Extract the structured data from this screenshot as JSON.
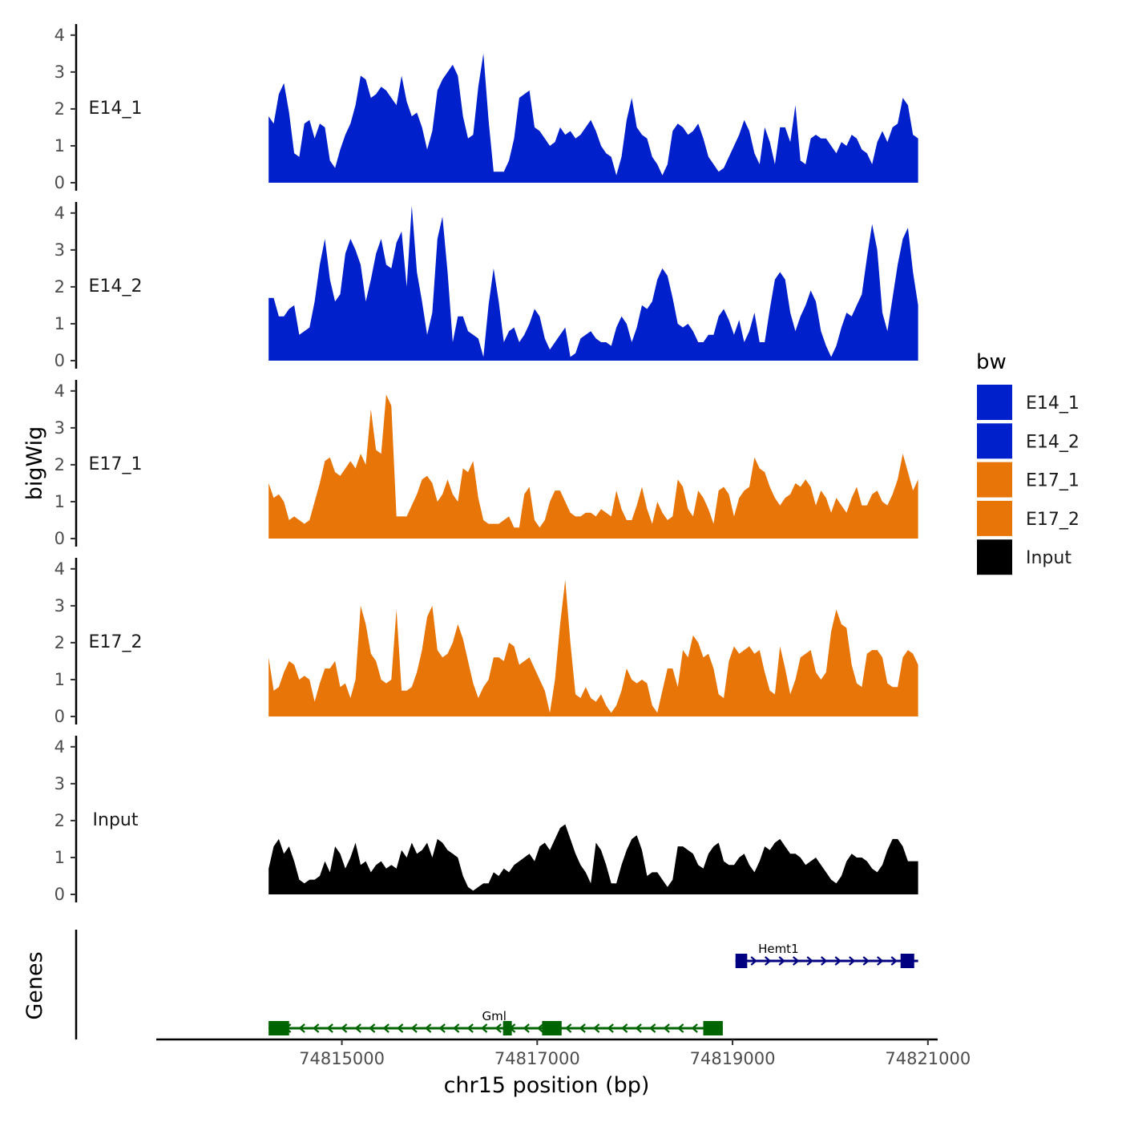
{
  "chart_data": {
    "type": "area",
    "title": "",
    "xlabel": "chr15 position (bp)",
    "ylabel": "bigWig",
    "genes_label": "Genes",
    "xlim": [
      74813100,
      74821100
    ],
    "ylim": [
      0,
      4.3
    ],
    "x_ticks": [
      74815000,
      74817000,
      74819000,
      74821000
    ],
    "x_tick_labels": [
      "74815000",
      "74817000",
      "74819000",
      "74821000"
    ],
    "y_ticks": [
      0,
      1,
      2,
      3,
      4
    ],
    "y_tick_labels": [
      "0",
      "1",
      "2",
      "3",
      "4"
    ],
    "x_start": 74814250,
    "x_end": 74820900,
    "n_points": 128,
    "legend": {
      "title": "bw",
      "entries": [
        {
          "label": "E14_1",
          "color": "#0020CC"
        },
        {
          "label": "E14_2",
          "color": "#0020CC"
        },
        {
          "label": "E17_1",
          "color": "#E87508"
        },
        {
          "label": "E17_2",
          "color": "#E87508"
        },
        {
          "label": "Input",
          "color": "#000000"
        }
      ]
    },
    "series": [
      {
        "name": "E14_1",
        "color": "#0020CC",
        "values": [
          1.8,
          1.6,
          2.4,
          2.7,
          1.9,
          0.8,
          0.7,
          1.6,
          1.7,
          1.2,
          1.6,
          1.5,
          0.6,
          0.4,
          0.9,
          1.3,
          1.6,
          2.1,
          2.9,
          2.8,
          2.3,
          2.4,
          2.6,
          2.5,
          2.3,
          2.1,
          2.9,
          2.2,
          1.8,
          1.9,
          1.5,
          0.9,
          1.4,
          2.5,
          2.8,
          3.0,
          3.2,
          2.9,
          1.8,
          1.2,
          1.3,
          2.6,
          3.5,
          1.7,
          0.3,
          0.3,
          0.3,
          0.6,
          1.2,
          2.3,
          2.4,
          2.5,
          1.5,
          1.4,
          1.2,
          1.0,
          1.1,
          1.5,
          1.3,
          1.4,
          1.2,
          1.3,
          1.5,
          1.7,
          1.4,
          1.0,
          0.8,
          0.7,
          0.2,
          0.7,
          1.7,
          2.3,
          1.5,
          1.3,
          1.2,
          0.7,
          0.5,
          0.2,
          0.5,
          1.4,
          1.6,
          1.5,
          1.3,
          1.4,
          1.6,
          1.2,
          0.7,
          0.5,
          0.3,
          0.4,
          0.7,
          1.0,
          1.3,
          1.7,
          1.4,
          0.8,
          0.5,
          1.5,
          1.1,
          0.5,
          1.5,
          1.5,
          1.1,
          2.1,
          0.6,
          0.5,
          1.2,
          1.3,
          1.2,
          1.2,
          1.0,
          0.8,
          1.1,
          1.0,
          1.3,
          1.2,
          0.9,
          0.8,
          0.5,
          1.1,
          1.4,
          1.1,
          1.5,
          1.6,
          2.3,
          2.1,
          1.3,
          1.2
        ]
      },
      {
        "name": "E14_2",
        "color": "#0020CC",
        "values": [
          1.7,
          1.7,
          1.2,
          1.2,
          1.4,
          1.5,
          0.7,
          0.8,
          0.9,
          1.6,
          2.6,
          3.3,
          2.2,
          1.6,
          1.8,
          2.9,
          3.3,
          3.0,
          2.6,
          1.6,
          2.2,
          2.9,
          3.3,
          2.6,
          2.5,
          3.2,
          3.5,
          2.0,
          4.2,
          2.4,
          1.6,
          0.7,
          1.3,
          3.3,
          3.9,
          2.4,
          0.5,
          1.2,
          1.2,
          0.8,
          0.7,
          0.6,
          0.1,
          1.5,
          2.5,
          1.6,
          0.5,
          0.8,
          0.9,
          0.5,
          0.7,
          1.0,
          1.4,
          1.2,
          0.6,
          0.3,
          0.5,
          0.7,
          0.9,
          0.1,
          0.2,
          0.6,
          0.7,
          0.8,
          0.6,
          0.5,
          0.5,
          0.4,
          0.9,
          1.2,
          1.0,
          0.5,
          0.9,
          1.5,
          1.4,
          1.6,
          2.2,
          2.5,
          2.3,
          1.7,
          1.0,
          0.9,
          1.0,
          0.8,
          0.5,
          0.5,
          0.7,
          0.7,
          1.2,
          1.4,
          1.1,
          0.7,
          1.1,
          0.5,
          0.8,
          1.3,
          0.5,
          0.5,
          1.4,
          2.2,
          2.4,
          2.2,
          1.3,
          0.8,
          1.2,
          1.5,
          1.9,
          1.6,
          0.8,
          0.4,
          0.1,
          0.4,
          0.9,
          1.3,
          1.2,
          1.5,
          1.8,
          2.8,
          3.7,
          3.0,
          1.3,
          0.8,
          1.7,
          2.6,
          3.3,
          3.6,
          2.4,
          1.5
        ]
      },
      {
        "name": "E17_1",
        "color": "#E87508",
        "values": [
          1.5,
          1.1,
          1.2,
          1.0,
          0.5,
          0.6,
          0.5,
          0.4,
          0.5,
          1.0,
          1.5,
          2.1,
          2.2,
          1.8,
          1.7,
          1.9,
          2.1,
          1.9,
          2.3,
          2.0,
          3.5,
          2.4,
          2.3,
          3.9,
          3.6,
          0.6,
          0.6,
          0.6,
          0.9,
          1.2,
          1.6,
          1.7,
          1.5,
          1.0,
          1.2,
          1.6,
          1.2,
          1.0,
          1.9,
          1.8,
          2.1,
          1.1,
          0.5,
          0.4,
          0.4,
          0.4,
          0.5,
          0.6,
          0.3,
          0.3,
          1.2,
          1.4,
          0.5,
          0.3,
          0.5,
          1.0,
          1.3,
          1.3,
          1.0,
          0.7,
          0.6,
          0.6,
          0.7,
          0.7,
          0.6,
          0.8,
          0.7,
          0.6,
          1.3,
          0.8,
          0.5,
          0.5,
          0.9,
          1.4,
          0.8,
          0.4,
          1.0,
          0.7,
          0.5,
          0.6,
          1.6,
          1.4,
          0.8,
          0.6,
          1.3,
          1.1,
          0.8,
          0.4,
          1.3,
          1.4,
          1.2,
          0.6,
          1.1,
          1.3,
          1.4,
          2.2,
          1.9,
          1.8,
          1.4,
          1.1,
          0.9,
          1.1,
          1.2,
          1.5,
          1.4,
          1.6,
          1.4,
          0.9,
          1.3,
          1.1,
          0.7,
          1.1,
          0.9,
          0.7,
          1.1,
          1.4,
          0.9,
          0.9,
          1.2,
          1.3,
          1.0,
          0.9,
          1.2,
          1.6,
          2.3,
          1.8,
          1.3,
          1.6
        ]
      },
      {
        "name": "E17_2",
        "color": "#E87508",
        "values": [
          1.6,
          0.7,
          0.8,
          1.2,
          1.5,
          1.4,
          1.0,
          1.1,
          1.0,
          0.4,
          0.9,
          1.3,
          1.3,
          1.5,
          0.8,
          0.9,
          0.5,
          1.0,
          3.0,
          2.5,
          1.7,
          1.5,
          1.0,
          0.9,
          1.0,
          2.9,
          0.7,
          0.7,
          0.8,
          1.2,
          1.8,
          2.7,
          3.0,
          1.8,
          1.6,
          1.7,
          2.0,
          2.5,
          2.1,
          1.5,
          0.9,
          0.5,
          0.8,
          1.0,
          1.6,
          1.6,
          1.5,
          2.0,
          1.9,
          1.4,
          1.5,
          1.6,
          1.3,
          1.0,
          0.7,
          0.1,
          1.0,
          2.5,
          3.7,
          2.0,
          0.6,
          0.5,
          0.8,
          0.5,
          0.4,
          0.6,
          0.3,
          0.1,
          0.3,
          0.7,
          1.3,
          1.0,
          0.9,
          1.0,
          0.9,
          0.3,
          0.1,
          0.7,
          1.3,
          1.3,
          0.8,
          1.8,
          1.6,
          2.2,
          2.0,
          1.6,
          1.7,
          1.3,
          0.6,
          0.5,
          1.5,
          1.9,
          1.7,
          1.8,
          1.9,
          1.7,
          1.8,
          1.2,
          0.7,
          0.6,
          1.9,
          1.3,
          0.6,
          1.0,
          1.6,
          1.7,
          1.8,
          1.2,
          1.0,
          1.2,
          2.3,
          2.9,
          2.5,
          2.4,
          1.4,
          0.9,
          0.8,
          1.7,
          1.8,
          1.8,
          1.6,
          0.9,
          0.8,
          0.8,
          1.6,
          1.8,
          1.7,
          1.4
        ]
      },
      {
        "name": "Input",
        "color": "#000000",
        "values": [
          0.7,
          1.3,
          1.5,
          1.1,
          1.3,
          0.9,
          0.4,
          0.3,
          0.4,
          0.4,
          0.5,
          0.9,
          0.6,
          1.3,
          1.1,
          0.7,
          1.0,
          1.4,
          0.8,
          0.9,
          0.6,
          0.8,
          0.9,
          0.7,
          0.8,
          0.7,
          1.2,
          1.0,
          1.4,
          1.1,
          1.2,
          1.4,
          1.0,
          1.5,
          1.4,
          1.2,
          1.1,
          1.0,
          0.5,
          0.2,
          0.1,
          0.2,
          0.3,
          0.3,
          0.6,
          0.5,
          0.7,
          0.6,
          0.8,
          0.9,
          1.0,
          1.1,
          0.9,
          1.3,
          1.4,
          1.2,
          1.5,
          1.8,
          1.9,
          1.5,
          1.1,
          0.8,
          0.6,
          0.3,
          1.4,
          1.2,
          0.8,
          0.3,
          0.3,
          0.8,
          1.2,
          1.5,
          1.6,
          1.2,
          0.5,
          0.6,
          0.6,
          0.4,
          0.2,
          0.4,
          1.3,
          1.3,
          1.2,
          1.1,
          0.8,
          0.7,
          1.1,
          1.3,
          1.4,
          0.9,
          0.8,
          0.8,
          1.0,
          1.1,
          0.8,
          0.6,
          0.9,
          1.3,
          1.2,
          1.4,
          1.5,
          1.3,
          1.1,
          1.1,
          1.0,
          0.8,
          0.9,
          1.0,
          0.8,
          0.6,
          0.4,
          0.3,
          0.5,
          0.9,
          1.1,
          1.0,
          1.0,
          0.9,
          0.7,
          0.6,
          0.8,
          1.2,
          1.5,
          1.5,
          1.3,
          0.9,
          0.9,
          0.9
        ]
      }
    ],
    "genes": [
      {
        "name": "Hemt1",
        "strand": "+",
        "color": "#000080",
        "start": 74819030,
        "end": 74820900,
        "exons": [
          [
            74819030,
            74819150
          ],
          [
            74820720,
            74820860
          ]
        ]
      },
      {
        "name": "Gml",
        "strand": "-",
        "color": "#006400",
        "start": 74814250,
        "end": 74818900,
        "exons": [
          [
            74814250,
            74814460
          ],
          [
            74816650,
            74816740
          ],
          [
            74817050,
            74817250
          ],
          [
            74818700,
            74818900
          ]
        ]
      }
    ]
  }
}
